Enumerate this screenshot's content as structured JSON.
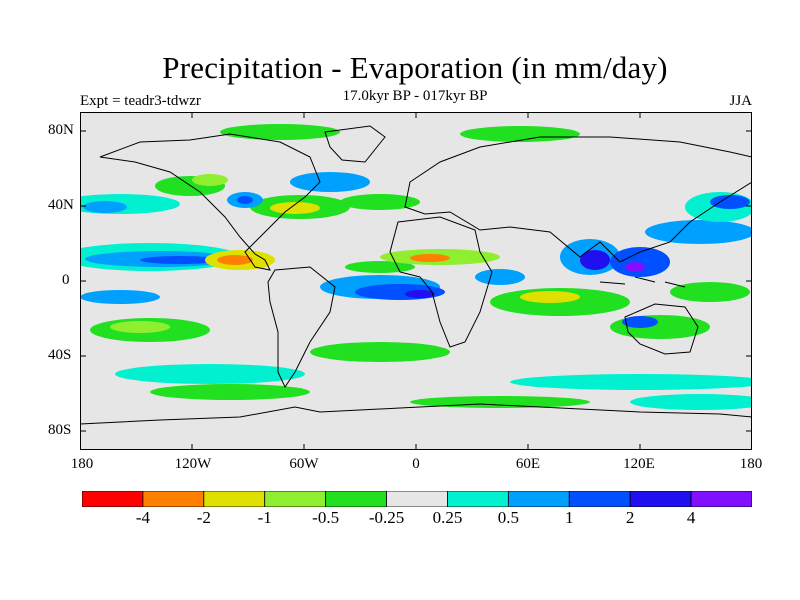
{
  "title": "Precipitation - Evaporation (in mm/day)",
  "subtitle": "17.0kyr BP - 017kyr BP",
  "expt_label": "Expt = teadr3-tdwzr",
  "season": "JJA",
  "lat_labels": [
    "80N",
    "40N",
    "0",
    "40S",
    "80S"
  ],
  "lon_labels": [
    "180",
    "120W",
    "60W",
    "0",
    "60E",
    "120E",
    "180"
  ],
  "colorbar": {
    "colors": [
      "#ff0000",
      "#ff8000",
      "#e0e000",
      "#90ee30",
      "#20e020",
      "#e6e6e6",
      "#00f0d0",
      "#00a0ff",
      "#0050ff",
      "#2010f0",
      "#8010ff"
    ],
    "labels": [
      "-4",
      "-2",
      "-1",
      "-0.5",
      "-0.25",
      "0.25",
      "0.5",
      "1",
      "2",
      "4"
    ]
  },
  "map_background": "#e6e6e6"
}
